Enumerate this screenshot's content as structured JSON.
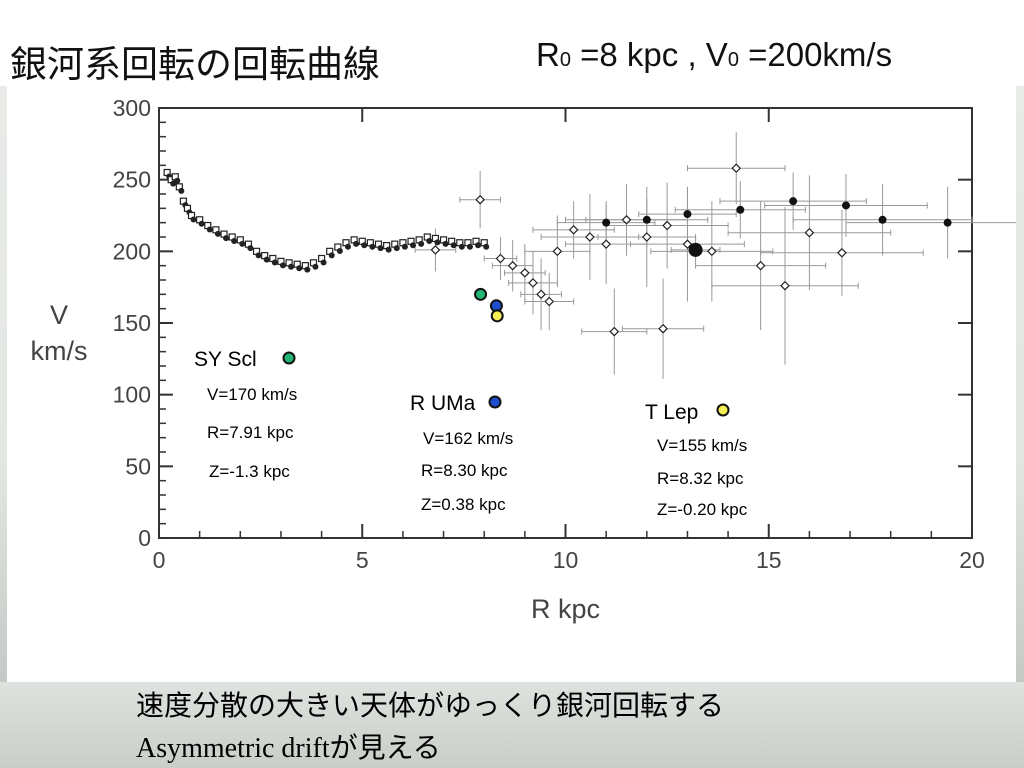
{
  "slide": {
    "title": "銀河系回転の回転曲線",
    "params": {
      "r_label": "R",
      "r_sub": "0",
      "r_value": " =8 kpc , V",
      "v_sub": "0",
      "v_value": " =200km/s"
    },
    "caption_line1": "速度分散の大きい天体がゆっくり銀河回転する",
    "caption_line2_latin": "Asymmetric drift",
    "caption_line2_jp": "が見える"
  },
  "chart_data": {
    "type": "scatter",
    "xlabel": "R kpc",
    "ylabel_line1": "V",
    "ylabel_line2": "km/s",
    "xlim": [
      0,
      20
    ],
    "ylim": [
      0,
      300
    ],
    "xticks": [
      "0",
      "5",
      "10",
      "15",
      "20"
    ],
    "yticks": [
      "0",
      "50",
      "100",
      "150",
      "200",
      "250",
      "300"
    ],
    "grid": false,
    "series": [
      {
        "style": "inner-disk-small-markers",
        "points": [
          [
            0.2,
            255
          ],
          [
            0.3,
            250
          ],
          [
            0.4,
            252
          ],
          [
            0.5,
            245
          ],
          [
            0.6,
            235
          ],
          [
            0.7,
            230
          ],
          [
            0.8,
            225
          ],
          [
            1.0,
            222
          ],
          [
            1.2,
            218
          ],
          [
            1.4,
            215
          ],
          [
            1.6,
            212
          ],
          [
            1.8,
            210
          ],
          [
            2.0,
            208
          ],
          [
            2.2,
            205
          ],
          [
            2.4,
            200
          ],
          [
            2.6,
            197
          ],
          [
            2.8,
            195
          ],
          [
            3.0,
            193
          ],
          [
            3.2,
            192
          ],
          [
            3.4,
            191
          ],
          [
            3.6,
            190
          ],
          [
            3.8,
            192
          ],
          [
            4.0,
            195
          ],
          [
            4.2,
            200
          ],
          [
            4.4,
            203
          ],
          [
            4.6,
            206
          ],
          [
            4.8,
            208
          ],
          [
            5.0,
            207
          ],
          [
            5.2,
            206
          ],
          [
            5.4,
            205
          ],
          [
            5.6,
            204
          ],
          [
            5.8,
            205
          ],
          [
            6.0,
            206
          ],
          [
            6.2,
            207
          ],
          [
            6.4,
            208
          ],
          [
            6.6,
            210
          ],
          [
            6.8,
            209
          ],
          [
            7.0,
            208
          ],
          [
            7.2,
            207
          ],
          [
            7.4,
            206
          ],
          [
            7.6,
            206
          ],
          [
            7.8,
            207
          ],
          [
            8.0,
            206
          ]
        ]
      },
      {
        "style": "outer-open-diamonds-with-errors",
        "points": [
          [
            8.4,
            195,
            0.4,
            15
          ],
          [
            8.7,
            190,
            0.5,
            18
          ],
          [
            9.0,
            185,
            0.5,
            20
          ],
          [
            9.2,
            178,
            0.6,
            22
          ],
          [
            9.4,
            170,
            0.5,
            25
          ],
          [
            9.6,
            165,
            0.6,
            20
          ],
          [
            9.8,
            200,
            0.8,
            25
          ],
          [
            10.2,
            215,
            1.0,
            20
          ],
          [
            10.6,
            210,
            1.2,
            30
          ],
          [
            11.0,
            205,
            1.0,
            28
          ],
          [
            11.5,
            222,
            1.5,
            25
          ],
          [
            12.0,
            210,
            1.2,
            35
          ],
          [
            12.5,
            218,
            1.5,
            30
          ],
          [
            13.0,
            205,
            1.4,
            40
          ],
          [
            13.6,
            200,
            1.5,
            35
          ],
          [
            14.2,
            258,
            1.2,
            25
          ],
          [
            14.8,
            190,
            1.6,
            45
          ],
          [
            15.4,
            176,
            1.8,
            55
          ],
          [
            16.0,
            213,
            2.0,
            40
          ],
          [
            16.8,
            199,
            2.0,
            30
          ],
          [
            11.2,
            144,
            0.8,
            30
          ],
          [
            12.4,
            146,
            1.0,
            35
          ],
          [
            6.8,
            201,
            0.5,
            15
          ],
          [
            7.9,
            236,
            0.5,
            20
          ]
        ]
      },
      {
        "style": "outer-filled-circles-with-errors",
        "points": [
          [
            11.0,
            220,
            1.2,
            15
          ],
          [
            12.0,
            222,
            1.5,
            15
          ],
          [
            13.0,
            226,
            1.2,
            18
          ],
          [
            14.3,
            229,
            1.6,
            20
          ],
          [
            15.6,
            235,
            1.8,
            20
          ],
          [
            16.9,
            232,
            2.0,
            22
          ],
          [
            17.8,
            222,
            2.2,
            25
          ],
          [
            19.4,
            220,
            2.5,
            25
          ],
          [
            13.2,
            201,
            0.6,
            10
          ]
        ]
      }
    ],
    "highlighted_stars": [
      {
        "name": "SY Scl",
        "x": 7.91,
        "y": 170,
        "color": "#22b573",
        "v_text": "V=170 km/s",
        "r_text": "R=7.91 kpc",
        "z_text": "Z=-1.3 kpc"
      },
      {
        "name": "R UMa",
        "x": 8.3,
        "y": 162,
        "color": "#1f4fd1",
        "v_text": "V=162 km/s",
        "r_text": "R=8.30 kpc",
        "z_text": "Z=0.38 kpc"
      },
      {
        "name": "T Lep",
        "x": 8.32,
        "y": 155,
        "color": "#f5ee55",
        "v_text": "V=155 km/s",
        "r_text": "R=8.32 kpc",
        "z_text": "Z=-0.20 kpc"
      }
    ]
  }
}
